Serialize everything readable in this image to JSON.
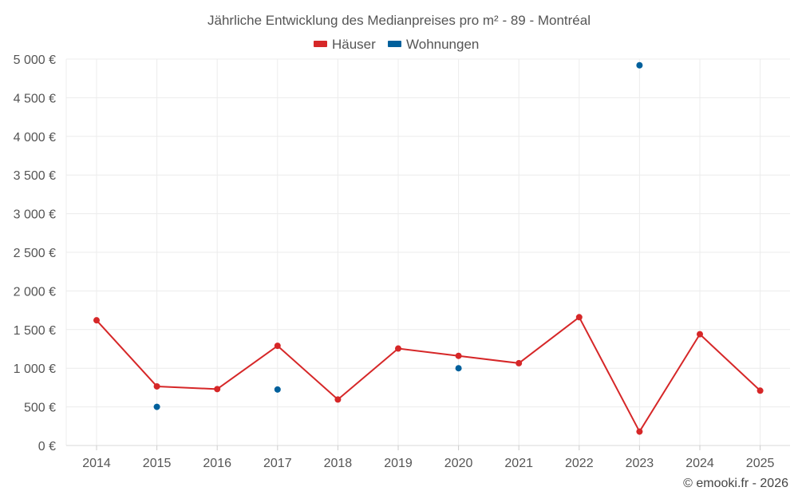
{
  "chart_data": {
    "type": "line",
    "title": "Jährliche Entwicklung des Medianpreises pro m² - 89 - Montréal",
    "categories": [
      "2014",
      "2015",
      "2016",
      "2017",
      "2018",
      "2019",
      "2020",
      "2021",
      "2022",
      "2023",
      "2024",
      "2025"
    ],
    "series": [
      {
        "name": "Häuser",
        "color": "#d62728",
        "mode": "lines+markers",
        "values": [
          1620,
          765,
          730,
          1290,
          595,
          1255,
          1160,
          1065,
          1660,
          180,
          1440,
          710
        ]
      },
      {
        "name": "Wohnungen",
        "color": "#00609c",
        "mode": "markers",
        "values": [
          null,
          500,
          null,
          725,
          null,
          null,
          1000,
          null,
          null,
          4920,
          null,
          null
        ]
      }
    ],
    "ylim": [
      0,
      5000
    ],
    "yticks": [
      {
        "value": 0,
        "label": "0 €"
      },
      {
        "value": 500,
        "label": "500 €"
      },
      {
        "value": 1000,
        "label": "1 000 €"
      },
      {
        "value": 1500,
        "label": "1 500 €"
      },
      {
        "value": 2000,
        "label": "2 000 €"
      },
      {
        "value": 2500,
        "label": "2 500 €"
      },
      {
        "value": 3000,
        "label": "3 000 €"
      },
      {
        "value": 3500,
        "label": "3 500 €"
      },
      {
        "value": 4000,
        "label": "4 000 €"
      },
      {
        "value": 4500,
        "label": "4 500 €"
      },
      {
        "value": 5000,
        "label": "5 000 €"
      }
    ],
    "grid": true,
    "legend_position": "top-center"
  },
  "credit": "© emooki.fr - 2026"
}
